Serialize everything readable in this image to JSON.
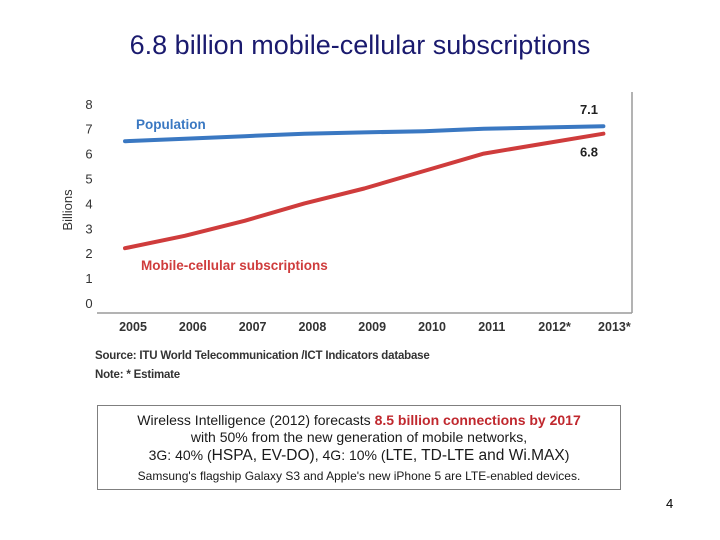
{
  "slide": {
    "title": "6.8 billion mobile-cellular subscriptions",
    "page_number": "4"
  },
  "source": {
    "line1": "Source:  ITU World Telecommunication /ICT Indicators database",
    "line2": "Note: * Estimate"
  },
  "infobox": {
    "line1_prefix": "Wireless Intelligence (2012) forecasts ",
    "line1_highlight": "8.5 billion connections by 2017",
    "line2": "with 50% from the new generation of mobile networks,",
    "line3_a": "3G: 40% (",
    "line3_b": "HSPA, EV-DO)",
    "line3_c": ", 4G: 10% (",
    "line3_d": "LTE, TD-LTE and Wi.MAX",
    "line3_e": ")",
    "line4": "Samsung's flagship Galaxy S3 and Apple's new iPhone 5 are LTE-enabled devices."
  },
  "chart_data": {
    "type": "line",
    "title": "",
    "xlabel": "",
    "ylabel": "Billions",
    "x": [
      "2005",
      "2006",
      "2007",
      "2008",
      "2009",
      "2010",
      "2011",
      "2012*",
      "2013*"
    ],
    "ylim": [
      0,
      8
    ],
    "yticks": [
      "0",
      "1",
      "2",
      "3",
      "4",
      "5",
      "6",
      "7",
      "8"
    ],
    "grid": false,
    "series": [
      {
        "name": "Population",
        "color": "#3a78c2",
        "values": [
          6.5,
          6.6,
          6.7,
          6.8,
          6.85,
          6.9,
          7.0,
          7.05,
          7.1
        ],
        "end_label": "7.1"
      },
      {
        "name": "Mobile-cellular subscriptions",
        "color": "#cf3c3c",
        "values": [
          2.2,
          2.7,
          3.3,
          4.0,
          4.6,
          5.3,
          6.0,
          6.4,
          6.8
        ],
        "end_label": "6.8"
      }
    ]
  },
  "colors": {
    "title": "#1a1a6e",
    "highlight": "#c0282e",
    "chart_background": "#ffffff",
    "axis_label": "#333333"
  }
}
